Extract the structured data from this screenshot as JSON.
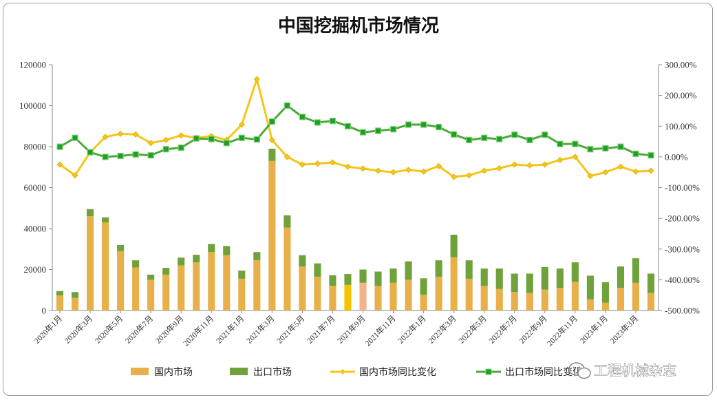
{
  "chart_data": {
    "type": "bar+line",
    "title": "中国挖掘机市场情况",
    "categories": [
      "2020年1月",
      "2020年2月",
      "2020年3月",
      "2020年4月",
      "2020年5月",
      "2020年6月",
      "2020年7月",
      "2020年8月",
      "2020年9月",
      "2020年10月",
      "2020年11月",
      "2020年12月",
      "2021年1月",
      "2021年2月",
      "2021年3月",
      "2021年4月",
      "2021年5月",
      "2021年6月",
      "2021年7月",
      "2021年8月",
      "2021年9月",
      "2021年10月",
      "2021年11月",
      "2021年12月",
      "2022年1月",
      "2022年2月",
      "2022年3月",
      "2022年4月",
      "2022年5月",
      "2022年6月",
      "2022年7月",
      "2022年8月",
      "2022年9月",
      "2022年10月",
      "2022年11月",
      "2022年12月",
      "2023年1月",
      "2023年2月",
      "2023年3月",
      "2023年4月"
    ],
    "x_tick_labels": [
      "2020年1月",
      "2020年3月",
      "2020年5月",
      "2020年7月",
      "2020年9月",
      "2020年11月",
      "2021年1月",
      "2021年3月",
      "2021年5月",
      "2021年7月",
      "2021年9月",
      "2021年11月",
      "2022年1月",
      "2022年3月",
      "2022年5月",
      "2022年7月",
      "2022年9月",
      "2022年11月",
      "2023年1月",
      "2023年3月"
    ],
    "left_axis": {
      "ylim": [
        0,
        120000
      ],
      "ticks": [
        "0",
        "20000",
        "40000",
        "60000",
        "80000",
        "100000",
        "120000"
      ]
    },
    "right_axis": {
      "ylim": [
        -500,
        300
      ],
      "unit": "%",
      "ticks": [
        "-500.00%",
        "-400.00%",
        "-300.00%",
        "-200.00%",
        "-100.00%",
        "0.00%",
        "100.00%",
        "200.00%",
        "300.00%"
      ]
    },
    "series": [
      {
        "name": "国内市场",
        "kind": "bar",
        "axis": "left",
        "stack": "total",
        "color": "#E8B04B",
        "values": [
          7300,
          6200,
          46000,
          43000,
          29000,
          21000,
          15000,
          17500,
          22000,
          23500,
          28500,
          27000,
          15500,
          24500,
          73000,
          40500,
          21500,
          16500,
          12000,
          12500,
          13500,
          12000,
          13500,
          15000,
          7700,
          16500,
          26000,
          15500,
          12000,
          10500,
          9000,
          8500,
          10200,
          11000,
          14000,
          5500,
          3800,
          11000,
          13500,
          8500
        ]
      },
      {
        "name": "出口市场",
        "kind": "bar",
        "axis": "left",
        "stack": "total",
        "color": "#6FA23A",
        "values": [
          2200,
          2800,
          3500,
          2500,
          3000,
          3500,
          2500,
          3300,
          3800,
          3700,
          4000,
          4500,
          4000,
          4000,
          6000,
          6000,
          5500,
          6500,
          5200,
          5300,
          6500,
          7000,
          7000,
          9000,
          8000,
          8000,
          11000,
          9000,
          8500,
          10000,
          9000,
          9500,
          11000,
          9500,
          9500,
          11500,
          10000,
          10500,
          12000,
          9500
        ]
      },
      {
        "name": "国内市场同比变化",
        "kind": "line",
        "axis": "right",
        "color": "#F5C518",
        "values": [
          -25,
          -60,
          15,
          65,
          75,
          73,
          45,
          55,
          70,
          62,
          68,
          55,
          105,
          253,
          55,
          0,
          -25,
          -22,
          -18,
          -32,
          -38,
          -45,
          -50,
          -42,
          -48,
          -30,
          -65,
          -60,
          -45,
          -37,
          -25,
          -28,
          -25,
          -10,
          0,
          -62,
          -50,
          -32,
          -48,
          -45
        ]
      },
      {
        "name": "出口市场同比变化",
        "kind": "line",
        "axis": "right",
        "color": "#4BA83A",
        "marker_color": "#1E9E2A",
        "values": [
          33,
          62,
          15,
          0,
          3,
          8,
          5,
          25,
          30,
          60,
          58,
          45,
          62,
          57,
          115,
          167,
          130,
          112,
          117,
          100,
          80,
          85,
          90,
          105,
          105,
          97,
          73,
          55,
          62,
          58,
          72,
          55,
          72,
          42,
          42,
          25,
          28,
          33,
          10,
          5
        ]
      }
    ],
    "highlight": {
      "index": 19,
      "bar_color": "#F4C400"
    },
    "highlight2": {
      "index": 20,
      "bar_color": "#F2B48A"
    },
    "legend_position": "bottom",
    "watermark": "工程机械杂志"
  }
}
